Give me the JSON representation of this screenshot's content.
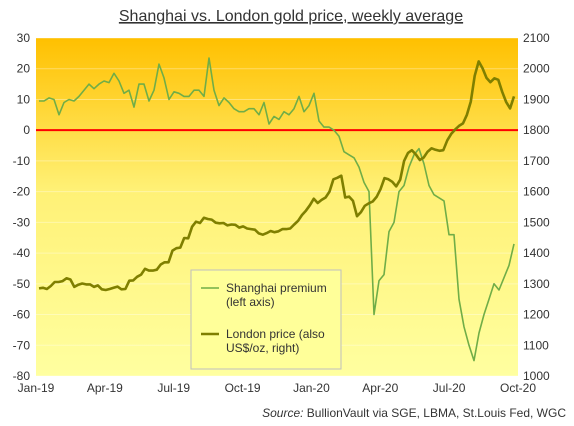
{
  "chart_data": {
    "type": "line",
    "title": "Shanghai vs. London gold price, weekly average",
    "source_label": "Source:",
    "source_text": " BullionVault via SGE, LBMA, St.Louis Fed, WGC",
    "x_ticks": [
      "Jan-19",
      "Apr-19",
      "Jul-19",
      "Oct-19",
      "Jan-20",
      "Apr-20",
      "Jul-20",
      "Oct-20"
    ],
    "y_left": {
      "min": -80,
      "max": 30,
      "ticks": [
        30,
        20,
        10,
        0,
        -10,
        -20,
        -30,
        -40,
        -50,
        -60,
        -70,
        -80
      ]
    },
    "y_right": {
      "min": 1000,
      "max": 2100,
      "ticks": [
        2100,
        2000,
        1900,
        1800,
        1700,
        1600,
        1500,
        1400,
        1300,
        1200,
        1100,
        1000
      ]
    },
    "series": [
      {
        "name": "Shanghai premium (left axis)",
        "legend_lines": [
          "Shanghai premium",
          "(left axis)"
        ],
        "axis": "left",
        "color": "#70ad47",
        "values": [
          9.5,
          9.5,
          10.5,
          10,
          5,
          9,
          10,
          9.5,
          11,
          13,
          15,
          13.5,
          15,
          16,
          15.5,
          18.5,
          16,
          12,
          13,
          7.5,
          15,
          15,
          9.5,
          13,
          21.5,
          17,
          10,
          12.5,
          12,
          11,
          11,
          13,
          13,
          11,
          23.5,
          13,
          8,
          10.5,
          9,
          7,
          6,
          6,
          7,
          7,
          5,
          9,
          2,
          4.5,
          3.5,
          6,
          5,
          7,
          11,
          6,
          8,
          12,
          3,
          1,
          1,
          0,
          -2,
          -7,
          -8,
          -9,
          -12,
          -17,
          -20,
          -60,
          -49,
          -47,
          -33,
          -30,
          -20,
          -18,
          -12,
          -8,
          -6,
          -11,
          -18,
          -21,
          -22,
          -23,
          -34,
          -34,
          -55,
          -64,
          -70,
          -75,
          -66,
          -60,
          -55,
          -50,
          -52,
          -48,
          -44,
          -37
        ]
      },
      {
        "name": "London price (also US$/oz, right)",
        "legend_lines": [
          "London price (also",
          "US$/oz, right)"
        ],
        "axis": "right",
        "color": "#7f7f00",
        "values": [
          1285,
          1287,
          1283,
          1293,
          1306,
          1306,
          1309,
          1318,
          1314,
          1290,
          1297,
          1301,
          1298,
          1298,
          1290,
          1295,
          1282,
          1280,
          1283,
          1287,
          1291,
          1282,
          1283,
          1310,
          1311,
          1323,
          1330,
          1349,
          1343,
          1343,
          1346,
          1363,
          1370,
          1370,
          1408,
          1416,
          1418,
          1449,
          1448,
          1486,
          1502,
          1498,
          1515,
          1511,
          1509,
          1499,
          1497,
          1498,
          1490,
          1493,
          1492,
          1483,
          1487,
          1480,
          1478,
          1476,
          1464,
          1460,
          1465,
          1472,
          1468,
          1471,
          1478,
          1478,
          1480,
          1493,
          1505,
          1524,
          1538,
          1556,
          1577,
          1563,
          1573,
          1581,
          1600,
          1640,
          1645,
          1652,
          1581,
          1584,
          1570,
          1520,
          1533,
          1554,
          1562,
          1568,
          1583,
          1608,
          1644,
          1640,
          1632,
          1617,
          1639,
          1700,
          1726,
          1735,
          1721,
          1703,
          1711,
          1730,
          1741,
          1736,
          1733,
          1735,
          1767,
          1788,
          1802,
          1814,
          1822,
          1850,
          1893,
          1977,
          2024,
          2001,
          1970,
          1956,
          1969,
          1964,
          1925,
          1892,
          1871,
          1910
        ]
      }
    ]
  }
}
